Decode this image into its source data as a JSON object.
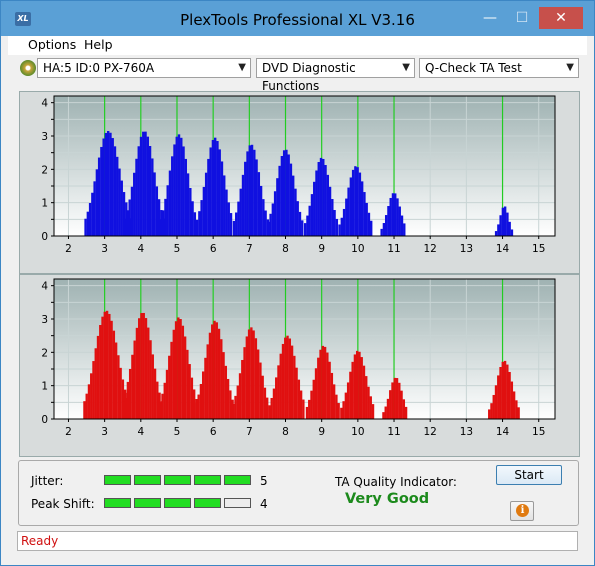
{
  "window": {
    "title": "PlexTools Professional XL V3.16",
    "icon_label": "XL"
  },
  "menu": {
    "items": [
      {
        "label": "Options"
      },
      {
        "label": "Help"
      }
    ]
  },
  "toolbar": {
    "drive": "HA:5 ID:0  PX-760A",
    "function": "DVD Diagnostic Functions",
    "test": "Q-Check TA Test"
  },
  "charts": [
    {
      "name": "upper-ta-chart",
      "bar_color": "#1010e0",
      "marker_color": "#22cc22",
      "x_ticks": [
        "2",
        "3",
        "4",
        "5",
        "6",
        "7",
        "8",
        "9",
        "10",
        "11",
        "12",
        "13",
        "14",
        "15"
      ],
      "y_ticks": [
        "0",
        "0.5",
        "1",
        "1.5",
        "2",
        "2.5",
        "3",
        "3.5",
        "4"
      ],
      "markers": [
        3,
        4,
        5,
        6,
        7,
        8,
        9,
        10,
        11,
        14
      ],
      "peaks": [
        {
          "center": 3.1,
          "height": 3.15,
          "width": 0.33
        },
        {
          "center": 4.1,
          "height": 3.15,
          "width": 0.28
        },
        {
          "center": 5.05,
          "height": 3.05,
          "width": 0.26
        },
        {
          "center": 6.05,
          "height": 2.95,
          "width": 0.26
        },
        {
          "center": 7.05,
          "height": 2.75,
          "width": 0.25
        },
        {
          "center": 8.0,
          "height": 2.6,
          "width": 0.25
        },
        {
          "center": 9.0,
          "height": 2.35,
          "width": 0.24
        },
        {
          "center": 9.95,
          "height": 2.1,
          "width": 0.24
        },
        {
          "center": 11.0,
          "height": 1.3,
          "width": 0.18
        },
        {
          "center": 14.05,
          "height": 0.9,
          "width": 0.12
        }
      ]
    },
    {
      "name": "lower-ta-chart",
      "bar_color": "#e01010",
      "marker_color": "#22cc22",
      "x_ticks": [
        "2",
        "3",
        "4",
        "5",
        "6",
        "7",
        "8",
        "9",
        "10",
        "11",
        "12",
        "13",
        "14",
        "15"
      ],
      "y_ticks": [
        "0",
        "0.5",
        "1",
        "1.5",
        "2",
        "2.5",
        "3",
        "3.5",
        "4"
      ],
      "markers": [
        3,
        4,
        5,
        6,
        7,
        8,
        9,
        10,
        11,
        14
      ],
      "peaks": [
        {
          "center": 3.05,
          "height": 3.25,
          "width": 0.32
        },
        {
          "center": 4.05,
          "height": 3.2,
          "width": 0.28
        },
        {
          "center": 5.05,
          "height": 3.05,
          "width": 0.27
        },
        {
          "center": 6.05,
          "height": 2.95,
          "width": 0.27
        },
        {
          "center": 7.05,
          "height": 2.75,
          "width": 0.26
        },
        {
          "center": 8.05,
          "height": 2.5,
          "width": 0.26
        },
        {
          "center": 9.05,
          "height": 2.2,
          "width": 0.24
        },
        {
          "center": 10.0,
          "height": 2.05,
          "width": 0.24
        },
        {
          "center": 11.05,
          "height": 1.25,
          "width": 0.18
        },
        {
          "center": 14.05,
          "height": 1.75,
          "width": 0.22
        }
      ]
    }
  ],
  "metrics": {
    "jitter": {
      "label": "Jitter:",
      "value": "5",
      "level": 5,
      "max": 5
    },
    "peak_shift": {
      "label": "Peak Shift:",
      "value": "4",
      "level": 4,
      "max": 5
    }
  },
  "ta_quality": {
    "label": "TA Quality Indicator:",
    "value": "Very Good"
  },
  "buttons": {
    "start": "Start",
    "info": "i"
  },
  "status": "Ready"
}
